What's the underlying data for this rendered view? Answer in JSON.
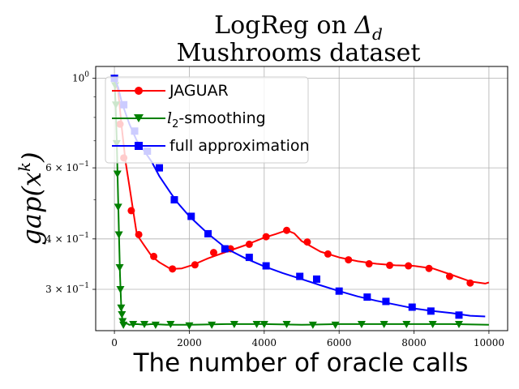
{
  "chart_data": {
    "type": "line",
    "title": "LogReg on Δ_d",
    "title_parts": [
      "LogReg on ",
      "Δ",
      "d"
    ],
    "subtitle": "Mushrooms dataset",
    "xlabel": "The number of oracle calls",
    "ylabel": "gap(x^k)",
    "ylabel_parts": [
      "gap(x",
      "k",
      ")"
    ],
    "xlim": [
      -500,
      10500
    ],
    "ylim": [
      0.237,
      1.07
    ],
    "yscale": "log",
    "grid": true,
    "legend_position": "upper-left",
    "x_ticks": [
      0,
      2000,
      4000,
      6000,
      8000,
      10000
    ],
    "x_tick_labels": [
      "0",
      "2000",
      "4000",
      "6000",
      "8000",
      "10000"
    ],
    "y_ticks": [
      {
        "value": 1.0,
        "base": "10",
        "exp": "0"
      },
      {
        "value": 0.6,
        "base": "6 × 10",
        "exp": "−1"
      },
      {
        "value": 0.4,
        "base": "4 × 10",
        "exp": "−1"
      },
      {
        "value": 0.3,
        "base": "3 × 10",
        "exp": "−1"
      }
    ],
    "y_minor_ticks": [
      0.7,
      0.8,
      0.9,
      0.5
    ],
    "series": [
      {
        "name": "JAGUAR",
        "color": "#ff0000",
        "marker": "circle",
        "x": [
          0,
          100,
          200,
          300,
          400,
          500,
          600,
          800,
          1000,
          1200,
          1500,
          1800,
          2100,
          2500,
          3000,
          3500,
          4000,
          4300,
          4600,
          4800,
          5000,
          5500,
          6000,
          6500,
          7000,
          7500,
          8000,
          8500,
          9000,
          9500,
          9900,
          10000
        ],
        "y": [
          1.0,
          0.93,
          0.75,
          0.62,
          0.54,
          0.47,
          0.41,
          0.385,
          0.362,
          0.35,
          0.337,
          0.338,
          0.345,
          0.358,
          0.372,
          0.386,
          0.403,
          0.411,
          0.42,
          0.413,
          0.395,
          0.372,
          0.36,
          0.352,
          0.347,
          0.344,
          0.343,
          0.338,
          0.326,
          0.314,
          0.31,
          0.312
        ],
        "markers_x": [
          0,
          150,
          250,
          450,
          650,
          1050,
          1550,
          2150,
          2650,
          3100,
          3600,
          4050,
          4600,
          5150,
          5700,
          6250,
          6800,
          7350,
          7850,
          8400,
          8950,
          9500
        ],
        "markers_y": [
          1.0,
          0.77,
          0.635,
          0.47,
          0.41,
          0.362,
          0.337,
          0.345,
          0.37,
          0.378,
          0.388,
          0.405,
          0.42,
          0.393,
          0.367,
          0.355,
          0.347,
          0.344,
          0.343,
          0.338,
          0.323,
          0.311
        ]
      },
      {
        "name": "l2-smoothing",
        "name_parts": [
          "l",
          "2",
          "-smoothing"
        ],
        "color": "#008000",
        "marker": "triangle-down",
        "x": [
          0,
          30,
          60,
          90,
          120,
          150,
          180,
          210,
          240,
          280,
          330,
          400,
          600,
          800,
          1000,
          1400,
          2000,
          3000,
          4000,
          5000,
          6000,
          7000,
          8000,
          9000,
          10000
        ],
        "y": [
          1.0,
          0.87,
          0.71,
          0.55,
          0.42,
          0.325,
          0.275,
          0.253,
          0.243,
          0.246,
          0.247,
          0.245,
          0.246,
          0.245,
          0.246,
          0.245,
          0.245,
          0.246,
          0.246,
          0.245,
          0.246,
          0.246,
          0.246,
          0.246,
          0.245
        ],
        "markers_x": [
          0,
          20,
          40,
          60,
          80,
          100,
          120,
          140,
          160,
          180,
          200,
          220,
          240,
          500,
          800,
          1100,
          1500,
          2000,
          2600,
          3200,
          3800,
          4000,
          4600,
          5300,
          5900,
          6600,
          7200,
          7800,
          8500,
          9200
        ],
        "markers_y": [
          1.0,
          0.96,
          0.86,
          0.69,
          0.58,
          0.48,
          0.41,
          0.34,
          0.3,
          0.27,
          0.26,
          0.25,
          0.245,
          0.246,
          0.246,
          0.245,
          0.246,
          0.244,
          0.245,
          0.246,
          0.246,
          0.246,
          0.246,
          0.245,
          0.245,
          0.246,
          0.246,
          0.246,
          0.246,
          0.246
        ]
      },
      {
        "name": "full approximation",
        "color": "#0000ff",
        "marker": "square",
        "x": [
          0,
          100,
          200,
          400,
          600,
          800,
          1000,
          1200,
          1500,
          1700,
          2000,
          2500,
          3000,
          3500,
          4000,
          4500,
          5000,
          5500,
          6000,
          6500,
          7000,
          7500,
          8000,
          8500,
          9000,
          9500,
          9900
        ],
        "y": [
          1.0,
          0.95,
          0.87,
          0.77,
          0.7,
          0.66,
          0.62,
          0.572,
          0.52,
          0.49,
          0.455,
          0.412,
          0.378,
          0.358,
          0.342,
          0.329,
          0.318,
          0.307,
          0.297,
          0.288,
          0.281,
          0.275,
          0.269,
          0.265,
          0.262,
          0.258,
          0.257
        ],
        "markers_x": [
          0,
          250,
          540,
          880,
          1200,
          1600,
          2050,
          2500,
          2950,
          3600,
          4050,
          4950,
          5400,
          6000,
          6750,
          7250,
          7950,
          8450,
          9200
        ],
        "markers_y": [
          1.0,
          0.86,
          0.74,
          0.66,
          0.6,
          0.5,
          0.455,
          0.412,
          0.378,
          0.36,
          0.343,
          0.323,
          0.318,
          0.297,
          0.287,
          0.28,
          0.271,
          0.265,
          0.259
        ]
      }
    ]
  }
}
